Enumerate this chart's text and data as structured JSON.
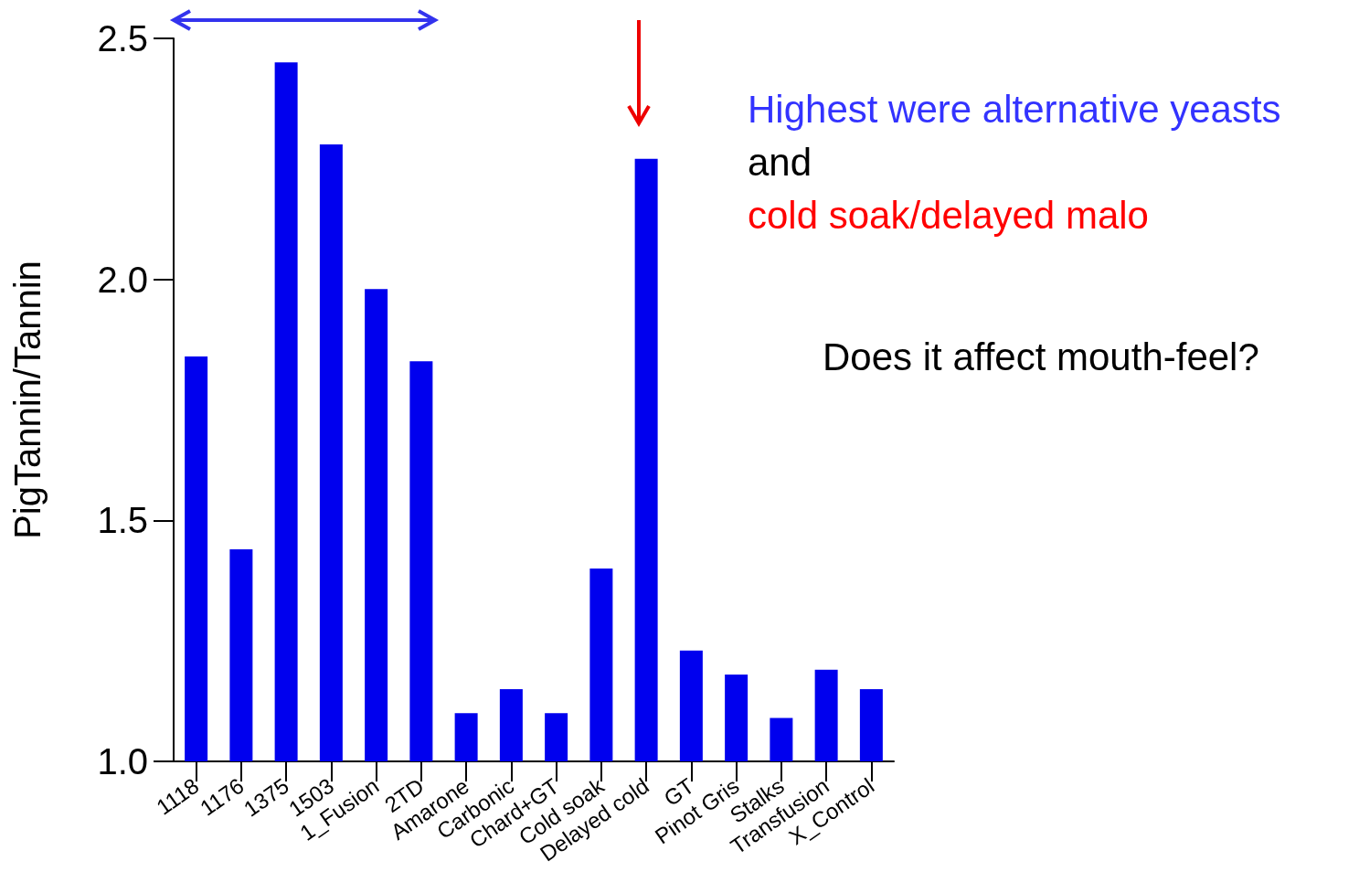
{
  "chart_data": {
    "type": "bar",
    "ylabel": "PigTannin/Tannin",
    "categories": [
      "1118",
      "1176",
      "1375",
      "1503",
      "1_Fusion",
      "2TD",
      "Amarone",
      "Carbonic",
      "Chard+GT",
      "Cold soak",
      "Delayed cold",
      "GT",
      "Pinot Gris",
      "Stalks",
      "Transfusion",
      "X_Control"
    ],
    "values": [
      1.84,
      1.44,
      2.45,
      2.28,
      1.98,
      1.83,
      1.1,
      1.15,
      1.1,
      1.4,
      2.25,
      1.23,
      1.18,
      1.09,
      1.19,
      1.15
    ],
    "color": "#0000ee",
    "ylim": [
      1.0,
      2.5
    ],
    "yticks": [
      {
        "value": 1.0,
        "label": "1.0"
      },
      {
        "value": 1.5,
        "label": "1.5"
      },
      {
        "value": 2.0,
        "label": "2.0"
      },
      {
        "value": 2.5,
        "label": "2.5"
      }
    ],
    "annotations": [
      "Highest were alternative yeasts",
      "and",
      "cold soak/delayed malo",
      "Does it affect mouth-feel?"
    ]
  }
}
